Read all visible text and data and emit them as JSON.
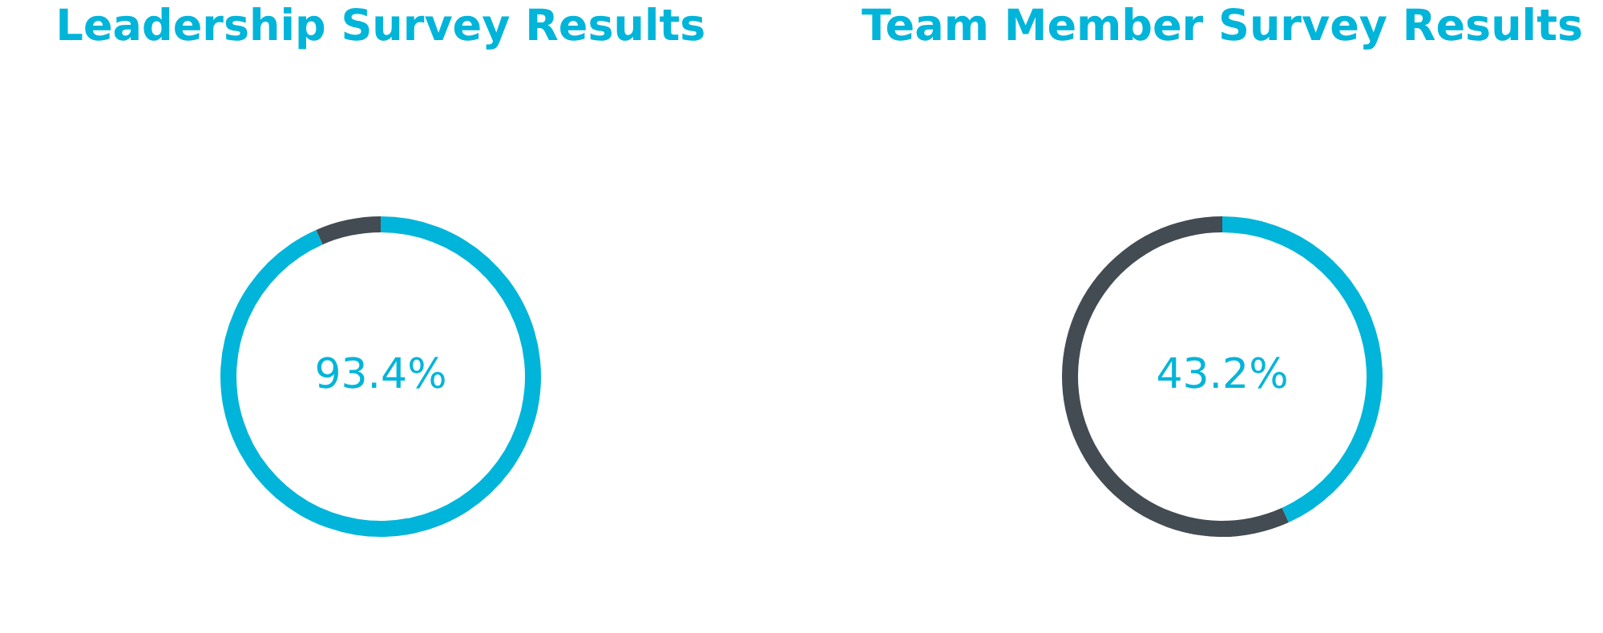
{
  "chart_data": [
    {
      "type": "donut",
      "title": "Leadership Survey Results",
      "categories": [
        null,
        null
      ],
      "values": [
        93.4,
        6.6
      ],
      "colors": [
        "#00b5d9",
        "#434b53"
      ],
      "value_labels": [
        "93.4%",
        null
      ],
      "legend": false
    },
    {
      "type": "donut",
      "title": "Team Member Survey Results",
      "categories": [
        null,
        null
      ],
      "values": [
        43.2,
        56.8
      ],
      "colors": [
        "#00b5d9",
        "#434b53"
      ],
      "value_labels": [
        "43.2%",
        null
      ],
      "legend": false
    }
  ]
}
